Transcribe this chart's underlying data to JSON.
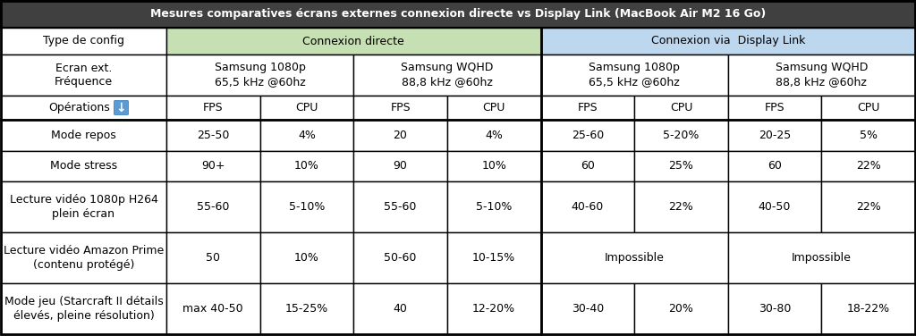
{
  "title": "Mesures comparatives écrans externes connexion directe vs Display Link (MacBook Air M2 16 Go)",
  "title_bg": "#404040",
  "title_fg": "#ffffff",
  "header1_text": "Connexion directe",
  "header2_text": "Connexion via  Display Link",
  "header1_bg": "#c6e0b4",
  "header2_bg": "#bdd7ee",
  "row_bg": "#ffffff",
  "border_color": "#000000",
  "col1_label": "Type de config",
  "sub_headers": [
    [
      "Samsung 1080p",
      "65,5 kHz @60hz"
    ],
    [
      "Samsung WQHD",
      "88,8 kHz @60hz"
    ],
    [
      "Samsung 1080p",
      "65,5 kHz @60hz"
    ],
    [
      "Samsung WQHD",
      "88,8 kHz @60hz"
    ]
  ],
  "fps_cpu_labels": [
    "FPS",
    "CPU",
    "FPS",
    "CPU",
    "FPS",
    "CPU",
    "FPS",
    "CPU"
  ],
  "rows": [
    {
      "label": "Mode repos",
      "values": [
        "25-50",
        "4%",
        "20",
        "4%",
        "25-60",
        "5-20%",
        "20-25",
        "5%"
      ],
      "multiline": false
    },
    {
      "label": "Mode stress",
      "values": [
        "90+",
        "10%",
        "90",
        "10%",
        "60",
        "25%",
        "60",
        "22%"
      ],
      "multiline": false
    },
    {
      "label": "Lecture vidéo 1080p H264\nplein écran",
      "values": [
        "55-60",
        "5-10%",
        "55-60",
        "5-10%",
        "40-60",
        "22%",
        "40-50",
        "22%"
      ],
      "multiline": true
    },
    {
      "label": "Lecture vidéo Amazon Prime\n(contenu protégé)",
      "values": [
        "50",
        "10%",
        "50-60",
        "10-15%",
        "Impossible",
        "",
        "Impossible",
        ""
      ],
      "multiline": true,
      "impossible": true
    },
    {
      "label": "Mode jeu (Starcraft II détails\nélevés, pleine résolution)",
      "values": [
        "max 40-50",
        "15-25%",
        "40",
        "12-20%",
        "30-40",
        "20%",
        "30-80",
        "18-22%"
      ],
      "multiline": true
    }
  ]
}
